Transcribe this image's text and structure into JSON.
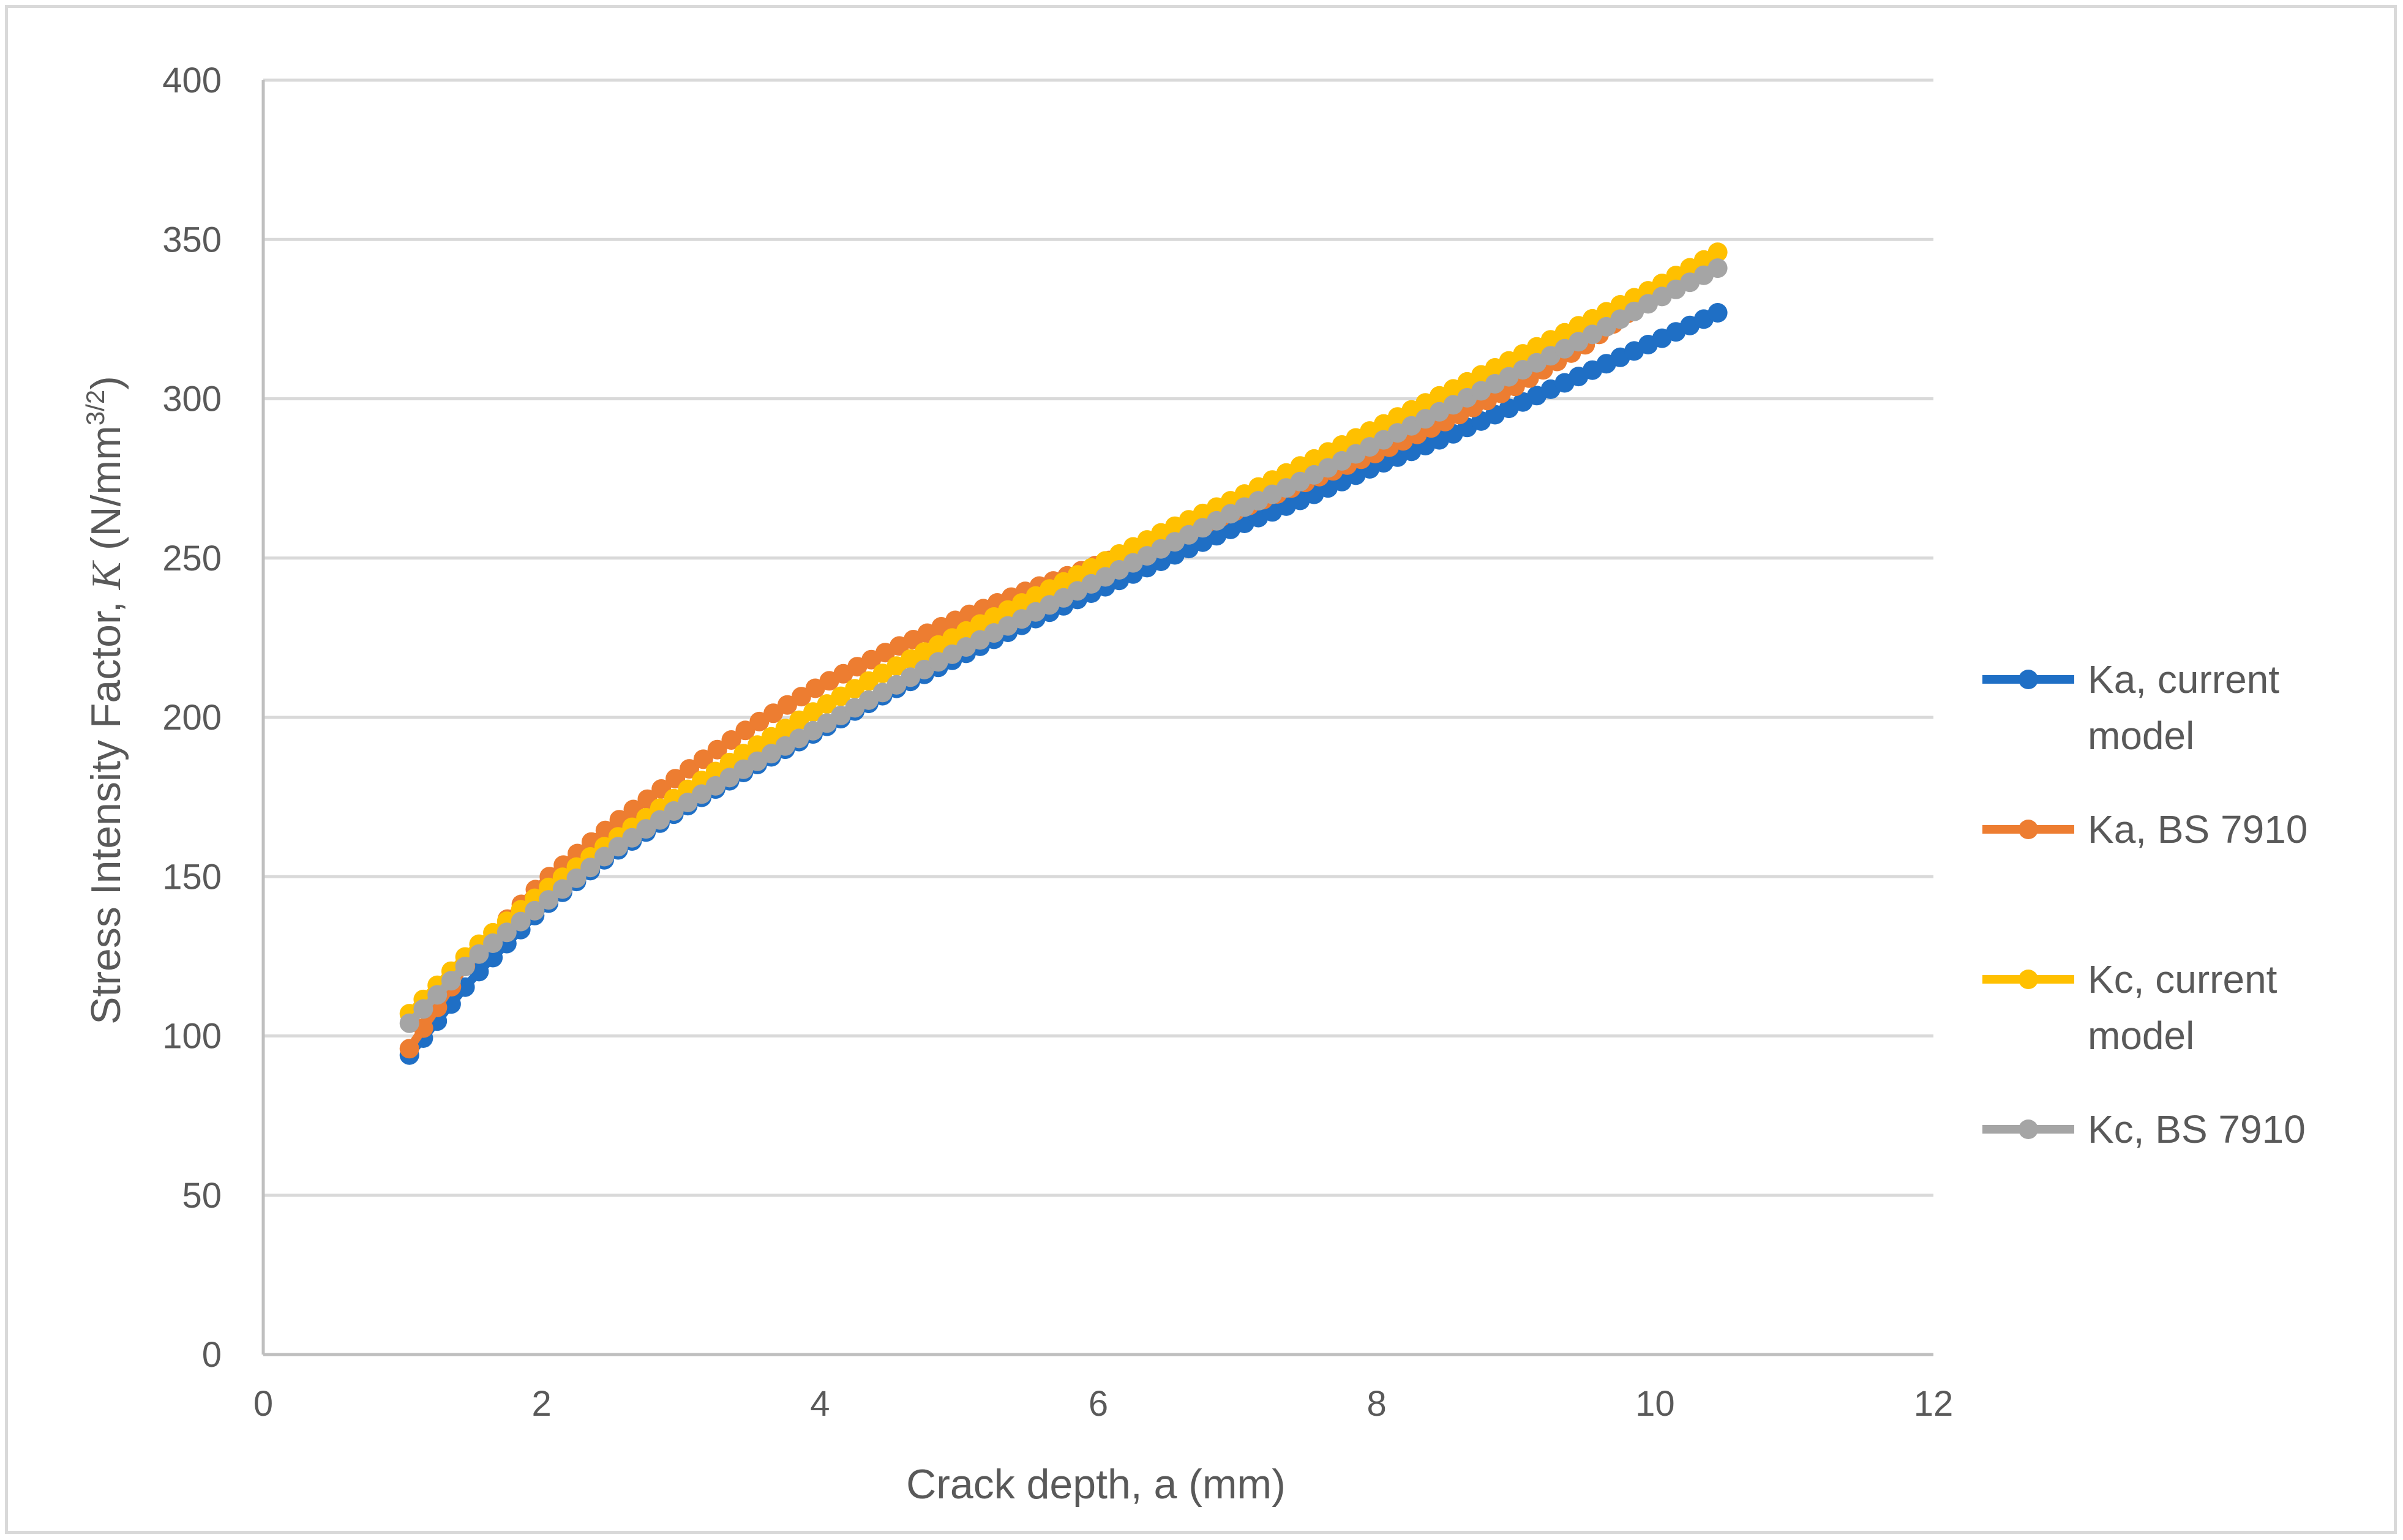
{
  "chart_data": {
    "type": "line",
    "xlabel": "Crack depth, a (mm)",
    "ylabel": {
      "prefix": "Stress Intensity Factor, ",
      "symbol": "K",
      "unit_open": " (N/mm",
      "unit_sup": "3/2",
      "unit_close": ")"
    },
    "xlim": [
      0,
      12
    ],
    "ylim": [
      0,
      400
    ],
    "xticks": [
      0,
      2,
      4,
      6,
      8,
      10,
      12
    ],
    "yticks": [
      0,
      50,
      100,
      150,
      200,
      250,
      300,
      350,
      400
    ],
    "grid": "horizontal major gridlines",
    "legend_position": "right",
    "series": [
      {
        "name": "Ka, current model",
        "legend_lines": [
          "Ka, current",
          "model"
        ],
        "color": "#1f6fc5",
        "marker": "circle",
        "x": [
          1.05,
          1.5,
          2,
          2.5,
          3,
          3.5,
          4,
          4.5,
          5,
          5.5,
          6,
          6.5,
          7,
          7.5,
          8,
          8.5,
          9,
          9.5,
          10,
          10.45
        ],
        "y": [
          94,
          118,
          140,
          157,
          171,
          184,
          196,
          208,
          219,
          230,
          240,
          250,
          260,
          269,
          279,
          288,
          298,
          308,
          318,
          327
        ]
      },
      {
        "name": "Ka, BS 7910",
        "legend_lines": [
          "Ka, BS 7910"
        ],
        "color": "#ed7d31",
        "marker": "circle",
        "x": [
          1.05,
          1.5,
          2,
          2.5,
          3,
          3.5,
          4,
          4.5,
          5,
          5.5,
          6,
          6.5,
          7,
          7.5,
          8,
          8.5,
          9,
          9.5,
          9.9
        ],
        "y": [
          96,
          125,
          148,
          166,
          182,
          197,
          210,
          221,
          231,
          240,
          248,
          256,
          265,
          274,
          283,
          293,
          304,
          317,
          330
        ]
      },
      {
        "name": "Kc, current model",
        "legend_lines": [
          "Kc, current",
          "model"
        ],
        "color": "#ffc000",
        "marker": "circle",
        "x": [
          1.05,
          1.5,
          2,
          2.5,
          3,
          3.5,
          4,
          4.5,
          5,
          5.5,
          6,
          6.5,
          7,
          7.5,
          8,
          8.5,
          9,
          9.5,
          10,
          10.45
        ],
        "y": [
          107,
          127,
          145,
          161,
          176,
          190,
          203,
          215,
          226,
          237,
          248,
          259,
          269,
          280,
          291,
          302,
          313,
          324,
          335,
          346
        ]
      },
      {
        "name": "Kc, BS 7910",
        "legend_lines": [
          "Kc, BS 7910"
        ],
        "color": "#a5a5a5",
        "marker": "circle",
        "x": [
          1.05,
          1.5,
          2,
          2.5,
          3,
          3.5,
          4,
          4.5,
          5,
          5.5,
          6,
          6.5,
          7,
          7.5,
          8,
          8.5,
          9,
          9.5,
          10,
          10.45
        ],
        "y": [
          104,
          124,
          141,
          158,
          172,
          185,
          197,
          209,
          221,
          232,
          243,
          254,
          265,
          275,
          286,
          297,
          308,
          319,
          331,
          341
        ]
      }
    ]
  }
}
